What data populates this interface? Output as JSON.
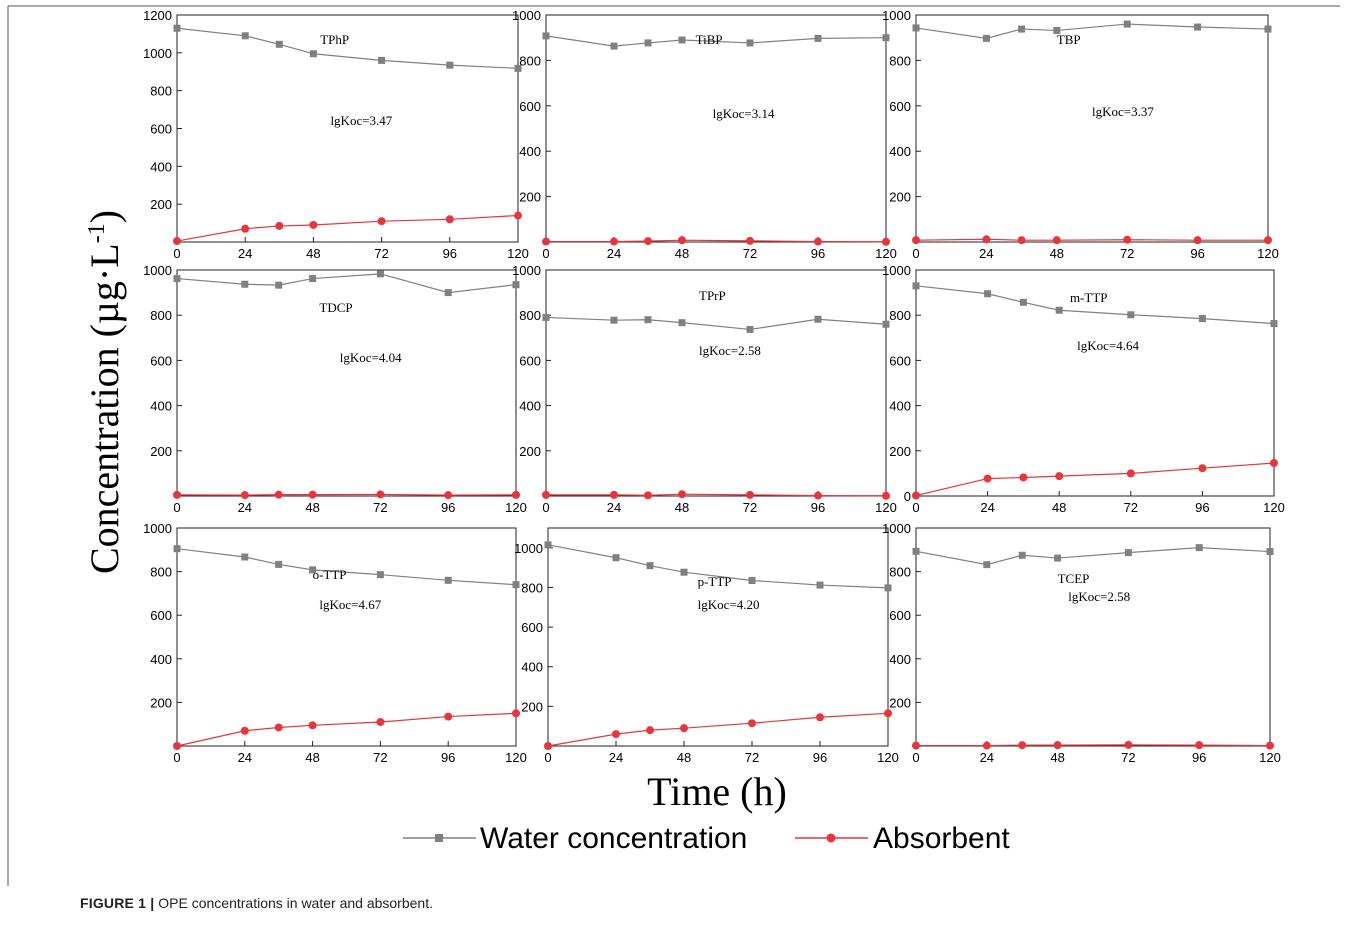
{
  "figure": {
    "caption_label": "FIGURE 1 |",
    "caption_text": "OPE concentrations in water and absorbent."
  },
  "axes_labels": {
    "x": "Time (h)",
    "y": "Concentration (µg·L",
    "y_sup": "-1",
    "y_close": ")"
  },
  "legend": [
    {
      "name": "Water concentration",
      "color": "#808080",
      "marker": "square"
    },
    {
      "name": "Absorbent",
      "color": "#e8343a",
      "marker": "circle"
    }
  ],
  "chart_data": [
    {
      "type": "line",
      "title": "TPhP",
      "annotation": "lgKoc=3.47",
      "x": [
        0,
        24,
        36,
        48,
        72,
        96,
        120
      ],
      "xticks": [
        0,
        24,
        48,
        72,
        96,
        120
      ],
      "ylim": [
        0,
        1200
      ],
      "yticks": [
        200,
        400,
        600,
        800,
        1000,
        1200
      ],
      "series": [
        {
          "name": "Water concentration",
          "values": [
            1130,
            1090,
            1045,
            995,
            960,
            935,
            918
          ]
        },
        {
          "name": "Absorbent",
          "values": [
            5,
            70,
            85,
            90,
            110,
            120,
            140
          ]
        }
      ]
    },
    {
      "type": "line",
      "title": "TiBP",
      "annotation": "lgKoc=3.14",
      "x": [
        0,
        24,
        36,
        48,
        72,
        96,
        120
      ],
      "xticks": [
        0,
        24,
        48,
        72,
        96,
        120
      ],
      "ylim": [
        0,
        1000
      ],
      "yticks": [
        200,
        400,
        600,
        800,
        1000
      ],
      "series": [
        {
          "name": "Water concentration",
          "values": [
            908,
            863,
            877,
            890,
            877,
            897,
            900
          ]
        },
        {
          "name": "Absorbent",
          "values": [
            2,
            2,
            4,
            8,
            5,
            2,
            1
          ]
        }
      ]
    },
    {
      "type": "line",
      "title": "TBP",
      "annotation": "lgKoc=3.37",
      "x": [
        0,
        24,
        36,
        48,
        72,
        96,
        120
      ],
      "xticks": [
        0,
        24,
        48,
        72,
        96,
        120
      ],
      "ylim": [
        0,
        1000
      ],
      "yticks": [
        200,
        400,
        600,
        800,
        1000
      ],
      "series": [
        {
          "name": "Water concentration",
          "values": [
            943,
            897,
            938,
            932,
            960,
            947,
            938
          ]
        },
        {
          "name": "Absorbent",
          "values": [
            8,
            12,
            8,
            8,
            10,
            8,
            8
          ]
        }
      ]
    },
    {
      "type": "line",
      "title": "TDCP",
      "annotation": "lgKoc=4.04",
      "x": [
        0,
        24,
        36,
        48,
        72,
        96,
        120
      ],
      "xticks": [
        0,
        24,
        48,
        72,
        96,
        120
      ],
      "ylim": [
        0,
        1000
      ],
      "yticks": [
        200,
        400,
        600,
        800,
        1000
      ],
      "series": [
        {
          "name": "Water concentration",
          "values": [
            962,
            937,
            933,
            962,
            983,
            900,
            935
          ]
        },
        {
          "name": "Absorbent",
          "values": [
            5,
            4,
            6,
            6,
            7,
            4,
            5
          ]
        }
      ]
    },
    {
      "type": "line",
      "title": "TPrP",
      "annotation": "lgKoc=2.58",
      "x": [
        0,
        24,
        36,
        48,
        72,
        96,
        120
      ],
      "xticks": [
        0,
        24,
        48,
        72,
        96,
        120
      ],
      "ylim": [
        0,
        1000
      ],
      "yticks": [
        200,
        400,
        600,
        800,
        1000
      ],
      "series": [
        {
          "name": "Water concentration",
          "values": [
            790,
            778,
            780,
            767,
            737,
            782,
            760
          ]
        },
        {
          "name": "Absorbent",
          "values": [
            5,
            5,
            3,
            8,
            5,
            2,
            1
          ]
        }
      ]
    },
    {
      "type": "line",
      "title": "m-TTP",
      "annotation": "lgKoc=4.64",
      "x": [
        0,
        24,
        36,
        48,
        72,
        96,
        120
      ],
      "xticks": [
        0,
        24,
        48,
        72,
        96,
        120
      ],
      "ylim": [
        0,
        1000
      ],
      "yticks": [
        0,
        200,
        400,
        600,
        800,
        1000
      ],
      "series": [
        {
          "name": "Water concentration",
          "values": [
            930,
            895,
            857,
            822,
            802,
            785,
            763
          ]
        },
        {
          "name": "Absorbent",
          "values": [
            2,
            77,
            82,
            88,
            100,
            123,
            146
          ]
        }
      ]
    },
    {
      "type": "line",
      "title": "o-TTP",
      "annotation": "lgKoc=4.67",
      "x": [
        0,
        24,
        36,
        48,
        72,
        96,
        120
      ],
      "xticks": [
        0,
        24,
        48,
        72,
        96,
        120
      ],
      "ylim": [
        0,
        1000
      ],
      "yticks": [
        200,
        400,
        600,
        800,
        1000
      ],
      "series": [
        {
          "name": "Water concentration",
          "values": [
            905,
            867,
            833,
            808,
            786,
            760,
            740
          ]
        },
        {
          "name": "Absorbent",
          "values": [
            0,
            70,
            85,
            95,
            110,
            135,
            150
          ]
        }
      ]
    },
    {
      "type": "line",
      "title": "p-TTP",
      "annotation": "lgKoc=4.20",
      "x": [
        0,
        24,
        36,
        48,
        72,
        96,
        120
      ],
      "xticks": [
        0,
        24,
        48,
        72,
        96,
        120
      ],
      "ylim": [
        0,
        1100
      ],
      "yticks": [
        200,
        400,
        600,
        800,
        1000
      ],
      "series": [
        {
          "name": "Water concentration",
          "values": [
            1015,
            950,
            910,
            877,
            835,
            812,
            798
          ]
        },
        {
          "name": "Absorbent",
          "values": [
            0,
            60,
            80,
            90,
            115,
            145,
            165
          ]
        }
      ]
    },
    {
      "type": "line",
      "title": "TCEP",
      "annotation": "lgKoc=2.58",
      "x": [
        0,
        24,
        36,
        48,
        72,
        96,
        120
      ],
      "xticks": [
        0,
        24,
        48,
        72,
        96,
        120
      ],
      "ylim": [
        0,
        1000
      ],
      "yticks": [
        200,
        400,
        600,
        800,
        1000
      ],
      "series": [
        {
          "name": "Water concentration",
          "values": [
            893,
            832,
            875,
            862,
            887,
            910,
            892
          ]
        },
        {
          "name": "Absorbent",
          "values": [
            2,
            2,
            4,
            4,
            5,
            4,
            2
          ]
        }
      ]
    }
  ]
}
